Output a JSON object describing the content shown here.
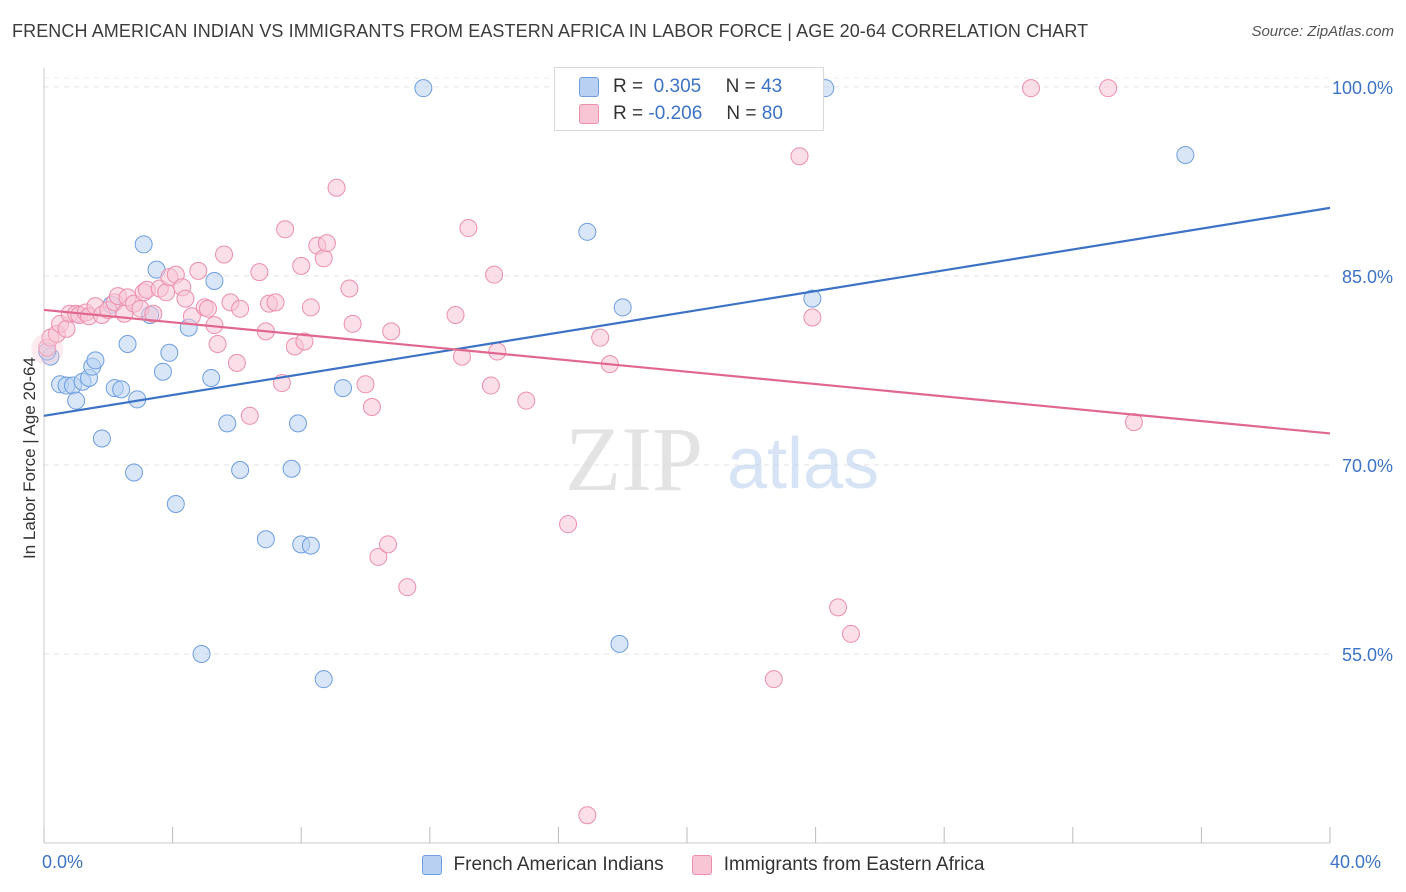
{
  "title": "FRENCH AMERICAN INDIAN VS IMMIGRANTS FROM EASTERN AFRICA IN LABOR FORCE | AGE 20-64 CORRELATION CHART",
  "source": "Source: ZipAtlas.com",
  "watermark": {
    "zip": "ZIP",
    "atlas": "atlas"
  },
  "legend": {
    "r_label": "R =",
    "n_label": "N =",
    "series": [
      {
        "r": "0.305",
        "n": "43",
        "color": "#3d73c5",
        "fill": "#b8d1f2",
        "stroke": "#6f9ee0"
      },
      {
        "r": "-0.206",
        "n": "80",
        "color": "#e0688f",
        "fill": "#f8c5d5",
        "stroke": "#ec8fac"
      }
    ]
  },
  "bottom_legend": [
    "French American Indians",
    "Immigrants from Eastern Africa"
  ],
  "chart_data": {
    "type": "scatter",
    "title": "FRENCH AMERICAN INDIAN VS IMMIGRANTS FROM EASTERN AFRICA IN LABOR FORCE | AGE 20-64 CORRELATION CHART",
    "xlabel": "",
    "ylabel": "In Labor Force | Age 20-64",
    "xlim": [
      0,
      40
    ],
    "ylim": [
      40,
      101.5
    ],
    "x_tick_labels": [
      "0.0%",
      "40.0%"
    ],
    "y_ticks": [
      55,
      70,
      85,
      100
    ],
    "y_tick_labels": [
      "55.0%",
      "70.0%",
      "85.0%",
      "100.0%"
    ],
    "series": [
      {
        "name": "French American Indians",
        "trend": {
          "x": [
            0,
            40
          ],
          "y": [
            73.9,
            90.4
          ]
        },
        "points": [
          [
            0.2,
            78.6
          ],
          [
            0.5,
            76.4
          ],
          [
            0.7,
            76.3
          ],
          [
            0.9,
            76.3
          ],
          [
            1.0,
            75.1
          ],
          [
            1.2,
            76.6
          ],
          [
            1.4,
            76.9
          ],
          [
            1.5,
            77.8
          ],
          [
            1.6,
            78.3
          ],
          [
            1.8,
            72.1
          ],
          [
            2.1,
            82.7
          ],
          [
            2.2,
            76.1
          ],
          [
            2.4,
            76.0
          ],
          [
            2.6,
            79.6
          ],
          [
            2.8,
            69.4
          ],
          [
            2.9,
            75.2
          ],
          [
            3.1,
            87.5
          ],
          [
            3.3,
            81.9
          ],
          [
            3.5,
            85.5
          ],
          [
            3.7,
            77.4
          ],
          [
            3.9,
            78.9
          ],
          [
            4.1,
            66.9
          ],
          [
            4.5,
            80.9
          ],
          [
            4.9,
            55.0
          ],
          [
            5.2,
            76.9
          ],
          [
            5.3,
            84.6
          ],
          [
            5.7,
            73.3
          ],
          [
            6.1,
            69.6
          ],
          [
            6.9,
            64.1
          ],
          [
            7.7,
            69.7
          ],
          [
            7.9,
            73.3
          ],
          [
            8.0,
            63.7
          ],
          [
            8.3,
            63.6
          ],
          [
            8.7,
            53.0
          ],
          [
            9.3,
            76.1
          ],
          [
            11.8,
            99.9
          ],
          [
            16.9,
            88.5
          ],
          [
            17.9,
            55.8
          ],
          [
            18.0,
            82.5
          ],
          [
            23.9,
            83.2
          ],
          [
            24.3,
            99.9
          ],
          [
            35.5,
            94.6
          ],
          [
            0.1,
            79.0
          ]
        ]
      },
      {
        "name": "Immigrants from Eastern Africa",
        "trend": {
          "x": [
            0,
            40
          ],
          "y": [
            82.3,
            72.5
          ]
        },
        "points": [
          [
            0.1,
            79.3
          ],
          [
            0.2,
            80.1
          ],
          [
            0.4,
            80.4
          ],
          [
            0.5,
            81.2
          ],
          [
            0.7,
            80.8
          ],
          [
            0.8,
            82.0
          ],
          [
            1.0,
            82.0
          ],
          [
            1.1,
            81.9
          ],
          [
            1.3,
            82.1
          ],
          [
            1.4,
            81.8
          ],
          [
            1.6,
            82.6
          ],
          [
            1.8,
            81.9
          ],
          [
            2.0,
            82.3
          ],
          [
            2.2,
            82.9
          ],
          [
            2.3,
            83.4
          ],
          [
            2.5,
            82.0
          ],
          [
            2.6,
            83.3
          ],
          [
            2.8,
            82.8
          ],
          [
            3.0,
            82.4
          ],
          [
            3.1,
            83.7
          ],
          [
            3.2,
            83.9
          ],
          [
            3.4,
            82.0
          ],
          [
            3.6,
            84.0
          ],
          [
            3.8,
            83.7
          ],
          [
            3.9,
            84.9
          ],
          [
            4.1,
            85.1
          ],
          [
            4.3,
            84.1
          ],
          [
            4.4,
            83.2
          ],
          [
            4.6,
            81.8
          ],
          [
            4.8,
            85.4
          ],
          [
            5.0,
            82.5
          ],
          [
            5.1,
            82.4
          ],
          [
            5.3,
            81.1
          ],
          [
            5.4,
            79.6
          ],
          [
            5.6,
            86.7
          ],
          [
            5.8,
            82.9
          ],
          [
            6.0,
            78.1
          ],
          [
            6.1,
            82.4
          ],
          [
            6.4,
            73.9
          ],
          [
            6.7,
            85.3
          ],
          [
            6.9,
            80.6
          ],
          [
            7.0,
            82.8
          ],
          [
            7.2,
            82.9
          ],
          [
            7.4,
            76.5
          ],
          [
            7.5,
            88.7
          ],
          [
            7.8,
            79.4
          ],
          [
            8.0,
            85.8
          ],
          [
            8.1,
            79.8
          ],
          [
            8.3,
            82.5
          ],
          [
            8.5,
            87.4
          ],
          [
            8.7,
            86.4
          ],
          [
            8.8,
            87.6
          ],
          [
            9.1,
            92.0
          ],
          [
            9.5,
            84.0
          ],
          [
            9.6,
            81.2
          ],
          [
            10.0,
            76.4
          ],
          [
            10.2,
            74.6
          ],
          [
            10.4,
            62.7
          ],
          [
            10.7,
            63.7
          ],
          [
            10.8,
            80.6
          ],
          [
            11.3,
            60.3
          ],
          [
            12.8,
            81.9
          ],
          [
            13.0,
            78.6
          ],
          [
            13.2,
            88.8
          ],
          [
            13.9,
            76.3
          ],
          [
            14.0,
            85.1
          ],
          [
            14.1,
            79.0
          ],
          [
            15.0,
            75.1
          ],
          [
            16.3,
            65.3
          ],
          [
            16.9,
            42.2
          ],
          [
            17.3,
            80.1
          ],
          [
            17.6,
            78.0
          ],
          [
            22.7,
            53.0
          ],
          [
            23.5,
            94.5
          ],
          [
            23.9,
            81.7
          ],
          [
            24.7,
            58.7
          ],
          [
            25.1,
            56.6
          ],
          [
            30.7,
            99.9
          ],
          [
            33.1,
            99.9
          ],
          [
            33.9,
            73.4
          ]
        ]
      }
    ]
  }
}
